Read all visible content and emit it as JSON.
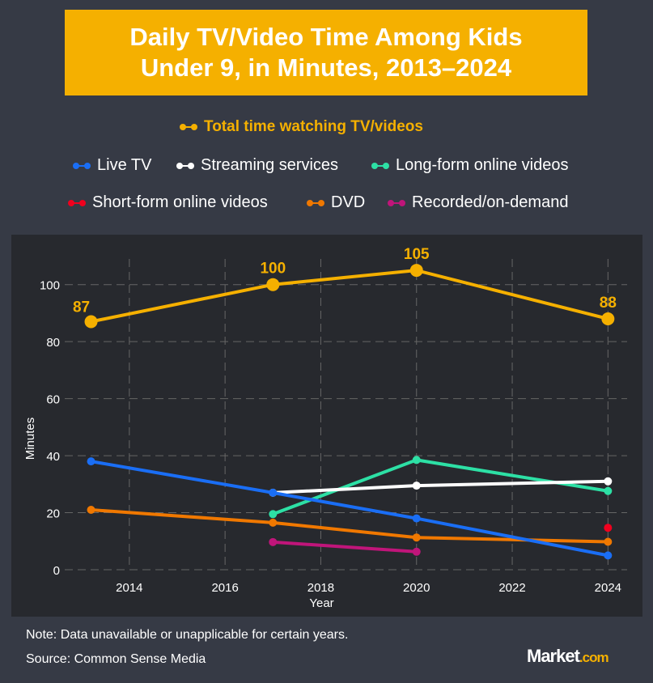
{
  "chart_data": {
    "type": "line",
    "title": "Daily TV/Video Time Among Kids\nUnder 9, in Minutes, 2013–2024",
    "xlabel": "Year",
    "ylabel": "Minutes",
    "xlim": [
      2012.65,
      2024.4
    ],
    "ylim": [
      0,
      109
    ],
    "xticks": [
      2014,
      2016,
      2018,
      2020,
      2022,
      2024
    ],
    "yticks": [
      0,
      20,
      40,
      60,
      80,
      100
    ],
    "grid": true,
    "legend_position": "top",
    "series": [
      {
        "name": "Total time watching TV/videos",
        "color": "#f5b000",
        "x": [
          2013.2,
          2017,
          2020,
          2024
        ],
        "y": [
          87,
          100,
          105,
          88
        ],
        "labels": [
          "87",
          "100",
          "105",
          "88"
        ]
      },
      {
        "name": "Live TV",
        "color": "#1a6ef5",
        "x": [
          2013.2,
          2017,
          2020,
          2024
        ],
        "y": [
          38,
          27,
          18,
          5
        ]
      },
      {
        "name": "Streaming services",
        "color": "#ffffff",
        "x": [
          2017,
          2020,
          2024
        ],
        "y": [
          27,
          29.5,
          31
        ]
      },
      {
        "name": "Long-form online videos",
        "color": "#2de0a5",
        "x": [
          2017,
          2020,
          2024
        ],
        "y": [
          19.5,
          38.5,
          27.6
        ]
      },
      {
        "name": "Short-form online videos",
        "color": "#f0001e",
        "x": [
          2024
        ],
        "y": [
          14.7
        ]
      },
      {
        "name": "DVD",
        "color": "#f07800",
        "x": [
          2013.2,
          2017,
          2020,
          2024
        ],
        "y": [
          21,
          16.5,
          11.3,
          9.8
        ]
      },
      {
        "name": "Recorded/on-demand",
        "color": "#c0157a",
        "x": [
          2017,
          2020
        ],
        "y": [
          9.7,
          6.3
        ]
      }
    ]
  },
  "footer": {
    "note": "Note: Data unavailable or unapplicable for certain years.",
    "source": "Source: Common Sense Media",
    "logo": "Market",
    "logo_suffix": ".com"
  }
}
